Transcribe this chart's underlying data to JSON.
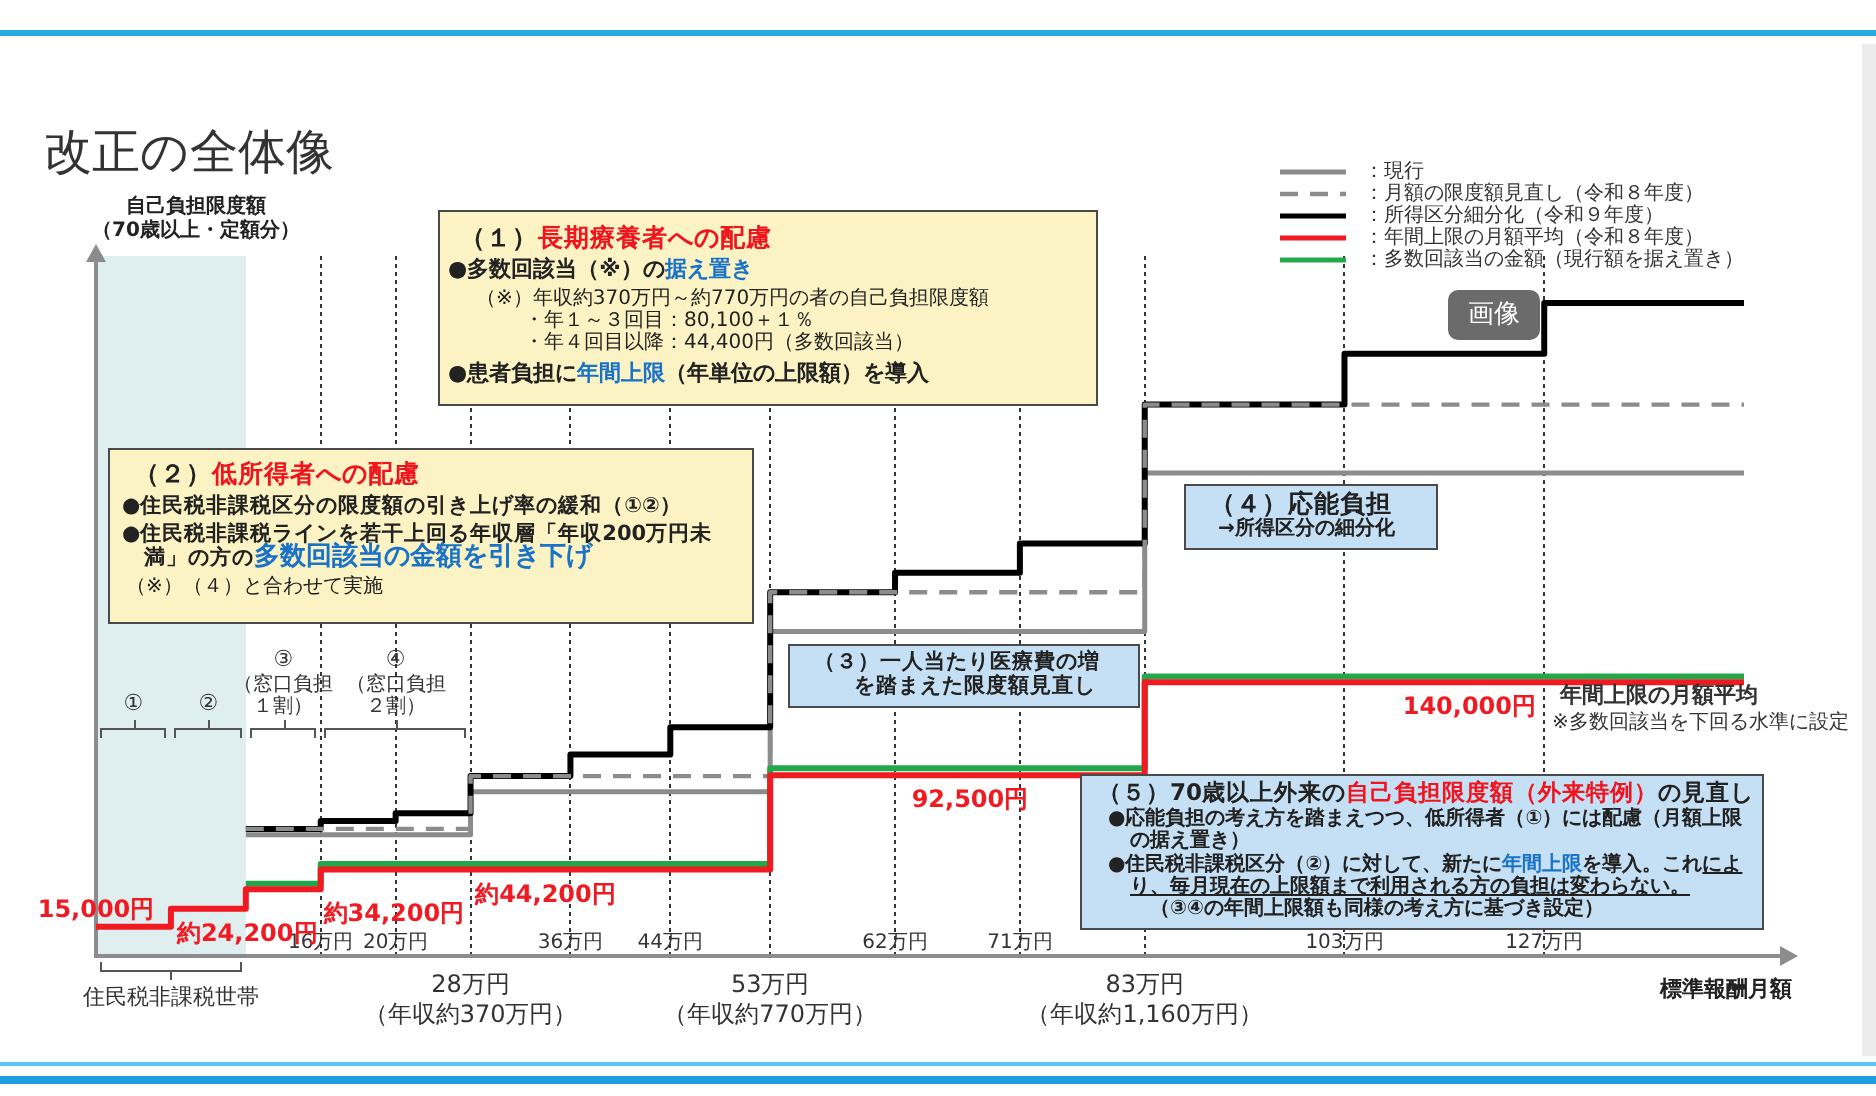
{
  "chart_data": {
    "type": "step",
    "title": "改正の全体像",
    "ylabel": "自己負担限度額（70歳以上・定額分）",
    "xlabel": "標準報酬月額",
    "ylim": [
      0,
      358000
    ],
    "tick_labels": "x",
    "grid": "x",
    "legend": "top right",
    "categories": [
      null,
      null,
      null,
      null,
      null,
      null,
      null,
      null,
      null,
      "16万円",
      null,
      null,
      "20万円",
      null,
      null,
      "28万円（年収約370万円）",
      null,
      null,
      null,
      "36万円",
      null,
      null,
      null,
      "44万円",
      null,
      null,
      null,
      "53万円（年収約770万円）",
      null,
      null,
      null,
      null,
      "62万円",
      null,
      null,
      null,
      null,
      "71万円",
      null,
      null,
      null,
      null,
      "83万円（年収約1,160万円）",
      null,
      null,
      null,
      null,
      null,
      null,
      null,
      "103万円",
      null,
      null,
      null,
      null,
      null,
      null,
      null,
      "127万円",
      null,
      null,
      null,
      null,
      null,
      null,
      null,
      null
    ],
    "series": [
      {
        "name": "：現行",
        "color": "#8c8c8c",
        "values": [
          null,
          null,
          null,
          null,
          null,
          null,
          62000,
          62000,
          62000,
          62000,
          62000,
          62000,
          62000,
          62000,
          62000,
          84000,
          84000,
          84000,
          84000,
          84000,
          84000,
          84000,
          84000,
          84000,
          84000,
          84000,
          84000,
          166000,
          166000,
          166000,
          166000,
          166000,
          166000,
          166000,
          166000,
          166000,
          166000,
          166000,
          166000,
          166000,
          166000,
          166000,
          247000,
          247000,
          247000,
          247000,
          247000,
          247000,
          247000,
          247000,
          247000,
          247000,
          247000,
          247000,
          247000,
          247000,
          247000,
          247000,
          247000,
          247000,
          247000,
          247000,
          247000,
          247000,
          247000,
          247000,
          247000
        ]
      },
      {
        "name": "：月額の限度額見直し（令和８年度）",
        "color": "#8c8c8c",
        "line_style": "dashed",
        "values": [
          null,
          null,
          null,
          null,
          null,
          null,
          65000,
          65000,
          65000,
          65000,
          65000,
          65000,
          65000,
          65000,
          65000,
          92000,
          92000,
          92000,
          92000,
          92000,
          92000,
          92000,
          92000,
          92000,
          92000,
          92000,
          92000,
          186000,
          186000,
          186000,
          186000,
          186000,
          186000,
          186000,
          186000,
          186000,
          186000,
          186000,
          186000,
          186000,
          186000,
          186000,
          282000,
          282000,
          282000,
          282000,
          282000,
          282000,
          282000,
          282000,
          282000,
          282000,
          282000,
          282000,
          282000,
          282000,
          282000,
          282000,
          282000,
          282000,
          282000,
          282000,
          282000,
          282000,
          282000,
          282000,
          282000
        ]
      },
      {
        "name": "：所得区分細分化（令和９年度）",
        "color": "#000000",
        "values": [
          null,
          null,
          null,
          null,
          null,
          null,
          65000,
          65000,
          65000,
          69000,
          69000,
          69000,
          73000,
          73000,
          73000,
          92000,
          92000,
          92000,
          92000,
          103000,
          103000,
          103000,
          103000,
          117000,
          117000,
          117000,
          117000,
          186000,
          186000,
          186000,
          186000,
          186000,
          196000,
          196000,
          196000,
          196000,
          196000,
          211000,
          211000,
          211000,
          211000,
          211000,
          282000,
          282000,
          282000,
          282000,
          282000,
          282000,
          282000,
          282000,
          308000,
          308000,
          308000,
          308000,
          308000,
          308000,
          308000,
          308000,
          334000,
          334000,
          334000,
          334000,
          334000,
          334000,
          334000,
          334000,
          334000
        ]
      },
      {
        "name": "：年間上限の月額平均（令和８年度）",
        "color": "#f01a22",
        "values": [
          15000,
          15000,
          15000,
          24200,
          24200,
          24200,
          34200,
          34200,
          34200,
          44200,
          44200,
          44200,
          44200,
          44200,
          44200,
          44200,
          44200,
          44200,
          44200,
          44200,
          44200,
          44200,
          44200,
          44200,
          44200,
          44200,
          44200,
          92500,
          92500,
          92500,
          92500,
          92500,
          92500,
          92500,
          92500,
          92500,
          92500,
          92500,
          92500,
          92500,
          92500,
          92500,
          140000,
          140000,
          140000,
          140000,
          140000,
          140000,
          140000,
          140000,
          140000,
          140000,
          140000,
          140000,
          140000,
          140000,
          140000,
          140000,
          140000,
          140000,
          140000,
          140000,
          140000,
          140000,
          140000,
          140000,
          140000
        ],
        "value_labels": [
          "15,000円",
          null,
          null,
          null,
          null,
          "約24,200円",
          null,
          null,
          "約34,200円",
          null,
          null,
          null,
          null,
          null,
          null,
          null,
          null,
          null,
          "約44,200円",
          null,
          null,
          null,
          null,
          null,
          null,
          null,
          null,
          null,
          null,
          null,
          null,
          null,
          null,
          null,
          null,
          "92,500円",
          null,
          null,
          null,
          null,
          null,
          null,
          null,
          null,
          null,
          null,
          null,
          null,
          null,
          null,
          null,
          null,
          null,
          null,
          null,
          "140,000円",
          null,
          null,
          null,
          null,
          null,
          null,
          null,
          null,
          null,
          null,
          null
        ]
      },
      {
        "name": "：多数回該当の金額（現行額を据え置き）",
        "color": "#22a84a",
        "values": [
          null,
          null,
          null,
          null,
          null,
          null,
          37000,
          37000,
          37000,
          47000,
          47000,
          47000,
          47000,
          47000,
          47000,
          47000,
          47000,
          47000,
          47000,
          47000,
          47000,
          47000,
          47000,
          47000,
          47000,
          47000,
          47000,
          96000,
          96000,
          96000,
          96000,
          96000,
          96000,
          96000,
          96000,
          96000,
          96000,
          96000,
          96000,
          96000,
          96000,
          96000,
          143000,
          143000,
          143000,
          143000,
          143000,
          143000,
          143000,
          143000,
          143000,
          143000,
          143000,
          143000,
          143000,
          143000,
          143000,
          143000,
          143000,
          143000,
          143000,
          143000,
          143000,
          143000,
          143000,
          143000,
          143000
        ]
      }
    ],
    "annotations": [
      "（１）",
      "長期療養者への配慮",
      "●多数回該当（※）の",
      "据え置き",
      "（※）年収約370万円～約770万円の者の自己負担限度額",
      "・年１～３回目：80,100＋１％",
      "・年４回目以降：44,400円（多数回該当）",
      "●患者負担に",
      "年間上限",
      "（年単位の上限額）を導入",
      "（２）",
      "低所得者への配慮",
      "●住民税非課税区分の限度額の引き上げ率の緩和（①②）",
      "●住民税非課税ラインを若干上回る年収層「年収200万円未満」の方の",
      "多数回該当の金額を引き下げ",
      "（※）（４）と合わせて実施",
      "（３）一人当たり医療費の増",
      "を踏まえた限度額見直し",
      "（４）応能負担",
      "→所得区分の細分化",
      "（５）70歳以上外来の",
      "自己負担限度額（外来特例）",
      "の見直し",
      "●応能負担の考え方を踏まえつつ、低所得者（①）には配慮（月額上限の据え置き）",
      "●住民税非課税区分（②）に対して、新たに",
      "年間上限",
      "を導入。これ",
      "により、毎月現在の上限額まで利用される方の負担は変わらない。",
      "（③④の年間上限額も同様の考え方に基づき設定）",
      "①",
      "②",
      "③",
      "（窓口負担１割）",
      "④",
      "（窓口負担２割）",
      "住民税非課税世帯",
      "年間上限の月額平均",
      "※多数回該当を下回る水準に設定",
      "画像"
    ]
  }
}
